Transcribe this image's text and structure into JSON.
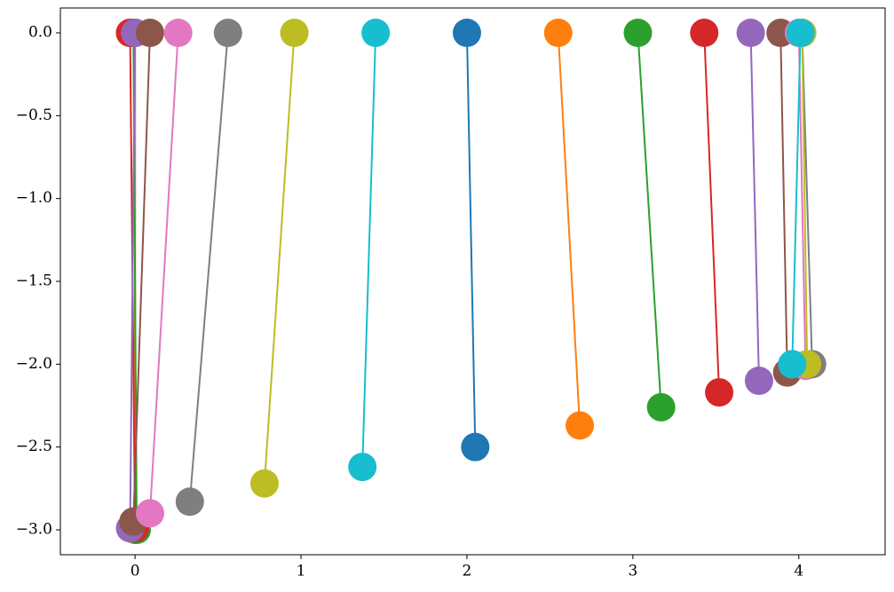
{
  "chart_data": {
    "type": "line",
    "xlim": [
      -0.45,
      4.52
    ],
    "ylim": [
      -3.15,
      0.15
    ],
    "xticks": [
      0,
      1,
      2,
      3,
      4
    ],
    "yticks": [
      {
        "value": 0,
        "label": "0.0"
      },
      {
        "value": -0.5,
        "label": "−0.5"
      },
      {
        "value": -1,
        "label": "−1.0"
      },
      {
        "value": -1.5,
        "label": "−1.5"
      },
      {
        "value": -2,
        "label": "−2.0"
      },
      {
        "value": -2.5,
        "label": "−2.5"
      },
      {
        "value": -3,
        "label": "−3.0"
      }
    ],
    "series": [
      {
        "color": "#1f77b4",
        "x": [
          0.0,
          0.0
        ],
        "values": [
          0,
          -3.0
        ]
      },
      {
        "color": "#ff7f0e",
        "x": [
          0.0,
          0.0
        ],
        "values": [
          0,
          -3.0
        ]
      },
      {
        "color": "#2ca02c",
        "x": [
          -0.01,
          0.01
        ],
        "values": [
          0,
          -3.0
        ]
      },
      {
        "color": "#d62728",
        "x": [
          -0.03,
          0.0
        ],
        "values": [
          0,
          -2.99
        ]
      },
      {
        "color": "#9467bd",
        "x": [
          0.0,
          -0.03
        ],
        "values": [
          0,
          -2.99
        ]
      },
      {
        "color": "#8c564b",
        "x": [
          0.09,
          -0.01
        ],
        "values": [
          0,
          -2.95
        ]
      },
      {
        "color": "#e377c2",
        "x": [
          0.26,
          0.09
        ],
        "values": [
          0,
          -2.9
        ]
      },
      {
        "color": "#7f7f7f",
        "x": [
          0.56,
          0.33
        ],
        "values": [
          0,
          -2.83
        ]
      },
      {
        "color": "#bcbd22",
        "x": [
          0.96,
          0.78
        ],
        "values": [
          0,
          -2.72
        ]
      },
      {
        "color": "#17becf",
        "x": [
          1.45,
          1.37
        ],
        "values": [
          0,
          -2.62
        ]
      },
      {
        "color": "#1f77b4",
        "x": [
          2.0,
          2.05
        ],
        "values": [
          0,
          -2.5
        ]
      },
      {
        "color": "#ff7f0e",
        "x": [
          2.55,
          2.68
        ],
        "values": [
          0,
          -2.37
        ]
      },
      {
        "color": "#2ca02c",
        "x": [
          3.03,
          3.17
        ],
        "values": [
          0,
          -2.26
        ]
      },
      {
        "color": "#d62728",
        "x": [
          3.43,
          3.52
        ],
        "values": [
          0,
          -2.17
        ]
      },
      {
        "color": "#9467bd",
        "x": [
          3.71,
          3.76
        ],
        "values": [
          0,
          -2.1
        ]
      },
      {
        "color": "#8c564b",
        "x": [
          3.89,
          3.93
        ],
        "values": [
          0,
          -2.05
        ]
      },
      {
        "color": "#e377c2",
        "x": [
          4.0,
          4.04
        ],
        "values": [
          0,
          -2.01
        ]
      },
      {
        "color": "#7f7f7f",
        "x": [
          4.02,
          4.08
        ],
        "values": [
          0,
          -2.0
        ]
      },
      {
        "color": "#bcbd22",
        "x": [
          4.02,
          4.05
        ],
        "values": [
          0,
          -2.0
        ]
      },
      {
        "color": "#17becf",
        "x": [
          4.01,
          3.96
        ],
        "values": [
          0,
          -2.0
        ]
      }
    ]
  }
}
